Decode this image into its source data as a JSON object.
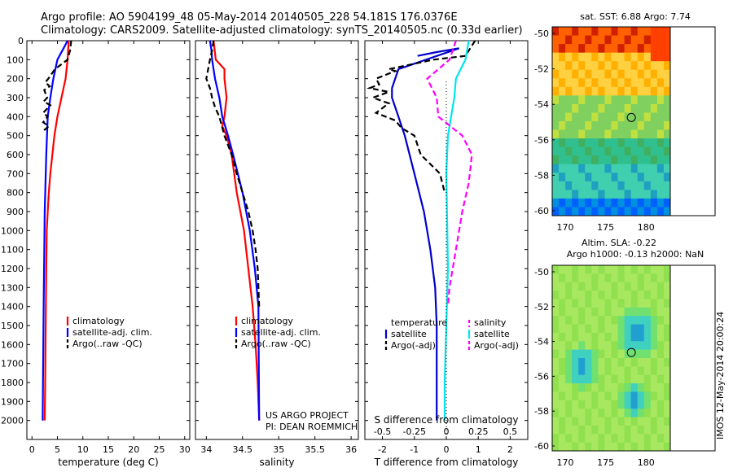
{
  "header": {
    "line1": "Argo profile: AO 5904199_48 05-May-2014 20140505_228 54.181S 176.0376E",
    "line2": "Climatology: CARS2009. Satellite-adjusted climatology: synTS_20140505.nc (0.33d earlier)"
  },
  "map1": {
    "title": "sat. SST: 6.88 Argo: 7.74",
    "yticks": [
      "-50",
      "-52",
      "-54",
      "-56",
      "-58",
      "-60"
    ],
    "xticks": [
      "170",
      "175",
      "180"
    ]
  },
  "map2": {
    "title1": "Altim. SLA: -0.22",
    "title2": "Argo h1000: -0.13 h2000: NaN",
    "yticks": [
      "-50",
      "-52",
      "-54",
      "-56",
      "-58",
      "-60"
    ],
    "xticks": [
      "170",
      "175",
      "180"
    ]
  },
  "stamp": "IMOS 12-May-2014 20:00:24",
  "chart_data": [
    {
      "type": "line",
      "xlabel": "temperature (deg C)",
      "xticks": [
        "0",
        "5",
        "10",
        "15",
        "20",
        "25",
        "30"
      ],
      "xlim": [
        -1,
        31
      ],
      "ylim": [
        2100,
        0
      ],
      "yticks": [
        "0",
        "100",
        "200",
        "300",
        "400",
        "500",
        "600",
        "700",
        "800",
        "900",
        "1000",
        "1100",
        "1200",
        "1300",
        "1400",
        "1500",
        "1600",
        "1700",
        "1800",
        "1900",
        "2000"
      ],
      "colors": {
        "climatology": "#ff0000",
        "satellite": "#0000ff",
        "argo": "#000000"
      },
      "legend": [
        "climatology",
        "satellite-adj. clim.",
        "Argo(..raw -QC)"
      ],
      "series": [
        {
          "name": "climatology",
          "points": [
            [
              7.2,
              0
            ],
            [
              7.0,
              100
            ],
            [
              6.6,
              200
            ],
            [
              5.8,
              300
            ],
            [
              5.0,
              400
            ],
            [
              4.4,
              500
            ],
            [
              4.0,
              600
            ],
            [
              3.6,
              700
            ],
            [
              3.3,
              800
            ],
            [
              3.1,
              900
            ],
            [
              2.9,
              1000
            ],
            [
              2.8,
              1200
            ],
            [
              2.7,
              1500
            ],
            [
              2.6,
              1800
            ],
            [
              2.5,
              2000
            ]
          ]
        },
        {
          "name": "satellite-adj. clim.",
          "points": [
            [
              7.0,
              0
            ],
            [
              6.0,
              50
            ],
            [
              5.0,
              100
            ],
            [
              4.2,
              200
            ],
            [
              3.6,
              300
            ],
            [
              3.1,
              400
            ],
            [
              2.8,
              600
            ],
            [
              2.5,
              900
            ],
            [
              2.3,
              1400
            ],
            [
              2.1,
              2000
            ]
          ]
        },
        {
          "name": "Argo(..raw -QC)",
          "points": [
            [
              7.7,
              0
            ],
            [
              7.5,
              50
            ],
            [
              7.0,
              100
            ],
            [
              4.5,
              150
            ],
            [
              3.2,
              200
            ],
            [
              2.6,
              220
            ],
            [
              3.5,
              240
            ],
            [
              2.4,
              260
            ],
            [
              3.0,
              300
            ],
            [
              2.3,
              320
            ],
            [
              3.6,
              340
            ],
            [
              2.2,
              380
            ],
            [
              3.1,
              400
            ],
            [
              2.2,
              430
            ],
            [
              3.3,
              450
            ],
            [
              2.0,
              480
            ]
          ]
        }
      ]
    },
    {
      "type": "line",
      "xlabel": "salinity",
      "xticks": [
        "34",
        "34.5",
        "35",
        "35.5",
        "36"
      ],
      "xlim": [
        33.85,
        36.1
      ],
      "ylim": [
        2100,
        0
      ],
      "colors": {
        "climatology": "#ff0000",
        "satellite": "#0000ff",
        "argo": "#000000"
      },
      "legend": [
        "climatology",
        "satellite-adj. clim.",
        "Argo(..raw -QC)"
      ],
      "series": [
        {
          "name": "climatology",
          "points": [
            [
              34.1,
              0
            ],
            [
              34.13,
              100
            ],
            [
              34.25,
              150
            ],
            [
              34.25,
              200
            ],
            [
              34.28,
              300
            ],
            [
              34.25,
              400
            ],
            [
              34.22,
              450
            ],
            [
              34.28,
              500
            ],
            [
              34.35,
              600
            ],
            [
              34.42,
              800
            ],
            [
              34.52,
              1000
            ],
            [
              34.58,
              1200
            ],
            [
              34.64,
              1400
            ],
            [
              34.68,
              1600
            ],
            [
              34.71,
              1800
            ],
            [
              34.73,
              2000
            ]
          ]
        },
        {
          "name": "satellite-adj. clim.",
          "points": [
            [
              34.05,
              0
            ],
            [
              34.07,
              50
            ],
            [
              34.08,
              100
            ],
            [
              34.12,
              200
            ],
            [
              34.18,
              300
            ],
            [
              34.22,
              400
            ],
            [
              34.3,
              500
            ],
            [
              34.37,
              600
            ],
            [
              34.5,
              800
            ],
            [
              34.6,
              1000
            ],
            [
              34.67,
              1200
            ],
            [
              34.72,
              1400
            ],
            [
              34.73,
              2000
            ]
          ]
        },
        {
          "name": "Argo(..raw -QC)",
          "points": [
            [
              34.1,
              0
            ],
            [
              34.08,
              50
            ],
            [
              34.05,
              100
            ],
            [
              34.0,
              200
            ],
            [
              34.05,
              250
            ],
            [
              34.08,
              300
            ],
            [
              34.12,
              350
            ],
            [
              34.18,
              400
            ],
            [
              34.25,
              500
            ],
            [
              34.3,
              550
            ],
            [
              34.35,
              600
            ],
            [
              34.42,
              700
            ],
            [
              34.5,
              800
            ],
            [
              34.58,
              900
            ],
            [
              34.64,
              1000
            ],
            [
              34.68,
              1100
            ],
            [
              34.71,
              1200
            ],
            [
              34.72,
              1300
            ],
            [
              34.73,
              1400
            ]
          ]
        }
      ]
    },
    {
      "type": "line",
      "xlabel": "T difference from climatology",
      "x2label": "S difference from climatology",
      "xticks": [
        "-2",
        "-1",
        "0",
        "1",
        "2"
      ],
      "x2ticks": [
        "-0.5",
        "-0.25",
        "0",
        "0.25",
        "0.5"
      ],
      "xlim": [
        -2.55,
        2.55
      ],
      "ylim": [
        2100,
        0
      ],
      "legend": {
        "temperature": [
          "satellite",
          "Argo(-adj)"
        ],
        "salinity": [
          "satellite",
          "Argo(-adj)"
        ]
      },
      "legend_headers": [
        "temperature",
        "salinity"
      ],
      "series": [
        {
          "name": "temperature satellite",
          "points": [
            [
              -0.9,
              80
            ],
            [
              -0.3,
              60
            ],
            [
              0.4,
              40
            ],
            [
              -1.5,
              150
            ],
            [
              -1.7,
              250
            ],
            [
              -1.7,
              300
            ],
            [
              -1.5,
              400
            ],
            [
              -1.3,
              500
            ],
            [
              -1.0,
              700
            ],
            [
              -0.7,
              900
            ],
            [
              -0.5,
              1100
            ],
            [
              -0.35,
              1300
            ],
            [
              -0.3,
              1500
            ],
            [
              -0.3,
              2000
            ]
          ]
        },
        {
          "name": "temperature Argo(-adj)",
          "points": [
            [
              0.9,
              0
            ],
            [
              0.6,
              80
            ],
            [
              -0.4,
              100
            ],
            [
              -1.8,
              150
            ],
            [
              -1.6,
              160
            ],
            [
              -2.2,
              200
            ],
            [
              -2.1,
              230
            ],
            [
              -2.4,
              250
            ],
            [
              -1.8,
              270
            ],
            [
              -2.3,
              300
            ],
            [
              -1.8,
              330
            ],
            [
              -2.2,
              380
            ],
            [
              -1.6,
              420
            ],
            [
              -1.4,
              460
            ],
            [
              -1.0,
              500
            ],
            [
              -0.8,
              600
            ],
            [
              -0.2,
              700
            ],
            [
              -0.05,
              800
            ]
          ]
        },
        {
          "name": "salinity satellite",
          "points": [
            [
              0.7,
              0
            ],
            [
              0.6,
              100
            ],
            [
              0.3,
              200
            ],
            [
              0.25,
              300
            ],
            [
              0.15,
              400
            ],
            [
              0.05,
              500
            ],
            [
              0.0,
              700
            ],
            [
              0.02,
              900
            ],
            [
              0.05,
              1200
            ],
            [
              0.0,
              1500
            ],
            [
              -0.05,
              1800
            ],
            [
              -0.05,
              2000
            ]
          ]
        },
        {
          "name": "salinity Argo(-adj)",
          "points": [
            [
              0.3,
              0
            ],
            [
              0.1,
              100
            ],
            [
              -0.6,
              200
            ],
            [
              -0.3,
              300
            ],
            [
              -0.25,
              400
            ],
            [
              0.5,
              500
            ],
            [
              0.8,
              600
            ],
            [
              0.7,
              750
            ],
            [
              0.5,
              900
            ],
            [
              0.3,
              1100
            ],
            [
              0.1,
              1300
            ],
            [
              0.05,
              1400
            ]
          ]
        }
      ]
    }
  ],
  "annotations": {
    "project1": "US ARGO PROJECT",
    "project2": "PI: DEAN ROEMMICH"
  }
}
